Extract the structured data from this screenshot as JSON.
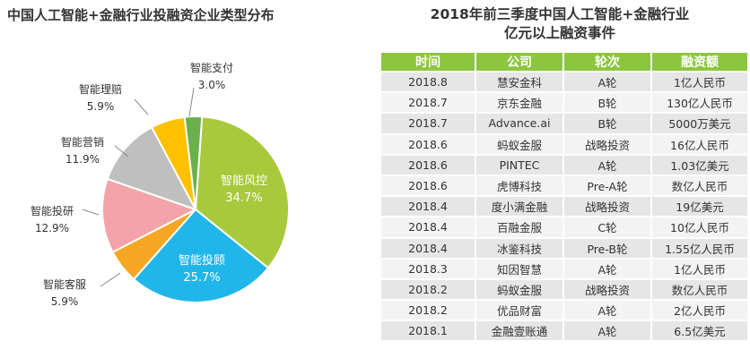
{
  "left_chart": {
    "title": "中国人工智能+金融行业投融资企业类型分布"
  },
  "right_table": {
    "title_line1": "2018年前三季度中国人工智能+金融行业",
    "title_line2": "亿元以上融资事件",
    "columns": [
      "时间",
      "公司",
      "轮次",
      "融资额"
    ],
    "rows": [
      [
        "2018.8",
        "慧安金科",
        "A轮",
        "1亿人民币"
      ],
      [
        "2018.7",
        "京东金融",
        "B轮",
        "130亿人民币"
      ],
      [
        "2018.7",
        "Advance.ai",
        "B轮",
        "5000万美元"
      ],
      [
        "2018.6",
        "蚂蚁金服",
        "战略投资",
        "16亿人民币"
      ],
      [
        "2018.6",
        "PINTEC",
        "A轮",
        "1.03亿美元"
      ],
      [
        "2018.6",
        "虎博科技",
        "Pre-A轮",
        "数亿人民币"
      ],
      [
        "2018.4",
        "度小满金融",
        "战略投资",
        "19亿美元"
      ],
      [
        "2018.4",
        "百融金服",
        "C轮",
        "10亿人民币"
      ],
      [
        "2018.4",
        "冰鉴科技",
        "Pre-B轮",
        "1.55亿人民币"
      ],
      [
        "2018.3",
        "知因智慧",
        "A轮",
        "1亿人民币"
      ],
      [
        "2018.2",
        "蚂蚁金服",
        "战略投资",
        "数亿人民币"
      ],
      [
        "2018.2",
        "优品财富",
        "A轮",
        "2亿人民币"
      ],
      [
        "2018.1",
        "金融壹账通",
        "A轮",
        "6.5亿美元"
      ]
    ],
    "header_color": "#8cc63f"
  },
  "chart_data": {
    "type": "pie",
    "title": "中国人工智能+金融行业投融资企业类型分布",
    "slices": [
      {
        "label": "智能风控",
        "value": 34.7,
        "value_label": "34.7%",
        "color": "#a7c93b",
        "label_inside": true
      },
      {
        "label": "智能投顾",
        "value": 25.7,
        "value_label": "25.7%",
        "color": "#21b6ea",
        "label_inside": true
      },
      {
        "label": "智能客服",
        "value": 5.9,
        "value_label": "5.9%",
        "color": "#f5a623",
        "label_inside": false
      },
      {
        "label": "智能投研",
        "value": 12.9,
        "value_label": "12.9%",
        "color": "#f4a3a8",
        "label_inside": false
      },
      {
        "label": "智能营销",
        "value": 11.9,
        "value_label": "11.9%",
        "color": "#bfbfbf",
        "label_inside": false
      },
      {
        "label": "智能理赔",
        "value": 5.9,
        "value_label": "5.9%",
        "color": "#ffc000",
        "label_inside": false
      },
      {
        "label": "智能支付",
        "value": 3.0,
        "value_label": "3.0%",
        "color": "#6ab04c",
        "label_inside": false
      }
    ],
    "legend": "none"
  }
}
